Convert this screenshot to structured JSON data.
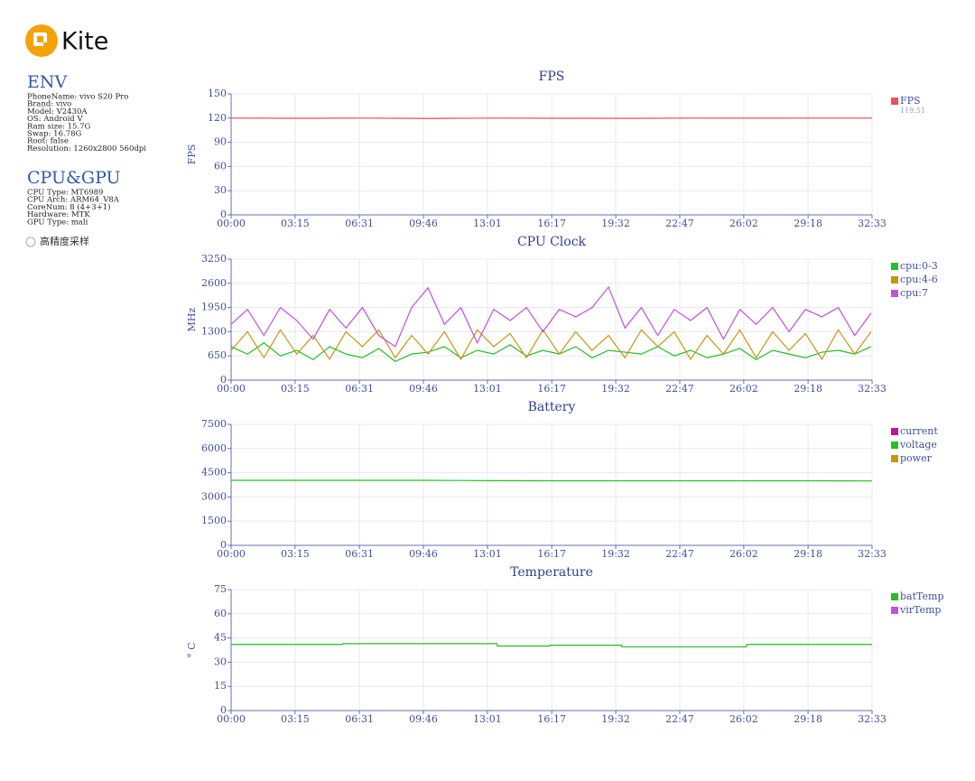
{
  "app": {
    "name": "Kite"
  },
  "sidebar": {
    "env_title": "ENV",
    "env": [
      "PhoneName: vivo S20 Pro",
      "Brand: vivo",
      "Model: V2430A",
      "OS: Android V",
      "Ram size: 15.7G",
      "Swap: 16.78G",
      "Root: false",
      "Resolution: 1260x2800 560dpi"
    ],
    "hw_title": "CPU&GPU",
    "hw": [
      "CPU Type: MT6989",
      "CPU Arch: ARM64_V8A",
      "CoreNum: 8 (4+3+1)",
      "Hardware: MTK",
      "GPU Type: mali"
    ],
    "option": "高精度采样"
  },
  "chart_data": [
    {
      "type": "line",
      "title": "FPS",
      "y_label": "FPS",
      "x": [
        0,
        200,
        400,
        600,
        800,
        1000,
        1200,
        1400,
        1600,
        1800,
        1953
      ],
      "series": [
        {
          "name": "FPS",
          "color": "#e8505b",
          "legend_value": 119.51,
          "values": [
            120,
            119.8,
            120,
            119.5,
            120,
            119.8,
            119.6,
            120,
            119.9,
            120,
            120
          ]
        }
      ],
      "xlim": [
        0,
        1953
      ],
      "xticks": [
        {
          "value": 0,
          "label": "00:00"
        },
        {
          "value": 195,
          "label": "03:15"
        },
        {
          "value": 391,
          "label": "06:31"
        },
        {
          "value": 586,
          "label": "09:46"
        },
        {
          "value": 781,
          "label": "13:01"
        },
        {
          "value": 977,
          "label": "16:17"
        },
        {
          "value": 1172,
          "label": "19:32"
        },
        {
          "value": 1367,
          "label": "22:47"
        },
        {
          "value": 1562,
          "label": "26:02"
        },
        {
          "value": 1758,
          "label": "29:18"
        },
        {
          "value": 1953,
          "label": "32:33"
        }
      ],
      "ylim": [
        0,
        150
      ],
      "yticks": [
        0,
        30,
        60,
        90,
        120,
        150
      ],
      "grid": true
    },
    {
      "type": "line",
      "title": "CPU Clock",
      "y_label": "MHz",
      "x": [
        0,
        50,
        100,
        150,
        200,
        250,
        300,
        350,
        400,
        450,
        500,
        550,
        600,
        650,
        700,
        750,
        800,
        850,
        900,
        950,
        1000,
        1050,
        1100,
        1150,
        1200,
        1250,
        1300,
        1350,
        1400,
        1450,
        1500,
        1550,
        1600,
        1650,
        1700,
        1750,
        1800,
        1850,
        1900,
        1950
      ],
      "series": [
        {
          "name": "cpu:0-3",
          "color": "#22c022",
          "values": [
            900,
            700,
            1000,
            650,
            800,
            550,
            900,
            700,
            600,
            850,
            500,
            700,
            750,
            900,
            600,
            800,
            700,
            950,
            650,
            800,
            700,
            900,
            600,
            800,
            750,
            700,
            900,
            650,
            800,
            600,
            700,
            850,
            550,
            800,
            700,
            600,
            750,
            800,
            700,
            900
          ]
        },
        {
          "name": "cpu:4-6",
          "color": "#c8960a",
          "values": [
            800,
            1300,
            600,
            1350,
            700,
            1200,
            560,
            1300,
            900,
            1350,
            600,
            1200,
            700,
            1300,
            560,
            1350,
            900,
            1250,
            600,
            1350,
            700,
            1300,
            800,
            1200,
            600,
            1350,
            900,
            1300,
            560,
            1200,
            700,
            1350,
            600,
            1300,
            800,
            1250,
            560,
            1350,
            700,
            1300
          ]
        },
        {
          "name": "cpu:7",
          "color": "#c050e0",
          "values": [
            1500,
            1900,
            1200,
            1950,
            1600,
            1100,
            1900,
            1400,
            1950,
            1200,
            900,
            1950,
            2480,
            1500,
            1950,
            1000,
            1900,
            1600,
            1950,
            1300,
            1900,
            1700,
            1950,
            2500,
            1400,
            1950,
            1200,
            1900,
            1600,
            1950,
            1100,
            1900,
            1500,
            1950,
            1300,
            1900,
            1700,
            1950,
            1200,
            1800
          ]
        }
      ],
      "xlim": [
        0,
        1953
      ],
      "xticks": [
        {
          "value": 0,
          "label": "00:00"
        },
        {
          "value": 195,
          "label": "03:15"
        },
        {
          "value": 391,
          "label": "06:31"
        },
        {
          "value": 586,
          "label": "09:46"
        },
        {
          "value": 781,
          "label": "13:01"
        },
        {
          "value": 977,
          "label": "16:17"
        },
        {
          "value": 1172,
          "label": "19:32"
        },
        {
          "value": 1367,
          "label": "22:47"
        },
        {
          "value": 1562,
          "label": "26:02"
        },
        {
          "value": 1758,
          "label": "29:18"
        },
        {
          "value": 1953,
          "label": "32:33"
        }
      ],
      "ylim": [
        0,
        3250
      ],
      "yticks": [
        0,
        650,
        1300,
        1950,
        2600,
        3250
      ],
      "grid": true
    },
    {
      "type": "line",
      "title": "Battery",
      "x": [
        0,
        200,
        400,
        600,
        800,
        1000,
        1200,
        1400,
        1600,
        1800,
        1953
      ],
      "series": [
        {
          "name": "current",
          "color": "#c0149a",
          "values": [
            null,
            null,
            null,
            null,
            null,
            null,
            null,
            null,
            null,
            null,
            null
          ]
        },
        {
          "name": "voltage",
          "color": "#22c022",
          "values": [
            4030,
            4030,
            4030,
            4030,
            4010,
            4000,
            4000,
            4000,
            4000,
            4000,
            3990
          ]
        },
        {
          "name": "power",
          "color": "#c8960a",
          "values": [
            null,
            null,
            null,
            null,
            null,
            null,
            null,
            null,
            null,
            null,
            null
          ]
        }
      ],
      "xlim": [
        0,
        1953
      ],
      "xticks": [
        {
          "value": 0,
          "label": "00:00"
        },
        {
          "value": 195,
          "label": "03:15"
        },
        {
          "value": 391,
          "label": "06:31"
        },
        {
          "value": 586,
          "label": "09:46"
        },
        {
          "value": 781,
          "label": "13:01"
        },
        {
          "value": 977,
          "label": "16:17"
        },
        {
          "value": 1172,
          "label": "19:32"
        },
        {
          "value": 1367,
          "label": "22:47"
        },
        {
          "value": 1562,
          "label": "26:02"
        },
        {
          "value": 1758,
          "label": "29:18"
        },
        {
          "value": 1953,
          "label": "32:33"
        }
      ],
      "ylim": [
        0,
        7500
      ],
      "yticks": [
        0,
        1500,
        3000,
        4500,
        6000,
        7500
      ],
      "grid": true
    },
    {
      "type": "line",
      "title": "Temperature",
      "y_label": "° C",
      "x": [
        0,
        340,
        341,
        810,
        811,
        970,
        971,
        1190,
        1191,
        1570,
        1571,
        1953
      ],
      "series": [
        {
          "name": "batTemp",
          "color": "#22c022",
          "values": [
            41,
            41,
            41.5,
            41.5,
            40,
            40,
            40.5,
            40.5,
            39.5,
            39.5,
            41,
            41
          ]
        },
        {
          "name": "virTemp",
          "color": "#c050e0",
          "values": [
            null,
            null,
            null,
            null,
            null,
            null,
            null,
            null,
            null,
            null,
            null,
            null
          ]
        }
      ],
      "xlim": [
        0,
        1953
      ],
      "xticks": [
        {
          "value": 0,
          "label": "00:00"
        },
        {
          "value": 195,
          "label": "03:15"
        },
        {
          "value": 391,
          "label": "06:31"
        },
        {
          "value": 586,
          "label": "09:46"
        },
        {
          "value": 781,
          "label": "13:01"
        },
        {
          "value": 977,
          "label": "16:17"
        },
        {
          "value": 1172,
          "label": "19:32"
        },
        {
          "value": 1367,
          "label": "22:47"
        },
        {
          "value": 1562,
          "label": "26:02"
        },
        {
          "value": 1758,
          "label": "29:18"
        },
        {
          "value": 1953,
          "label": "32:33"
        }
      ],
      "ylim": [
        0,
        75
      ],
      "yticks": [
        0,
        15,
        30,
        45,
        60,
        75
      ],
      "grid": true
    }
  ]
}
